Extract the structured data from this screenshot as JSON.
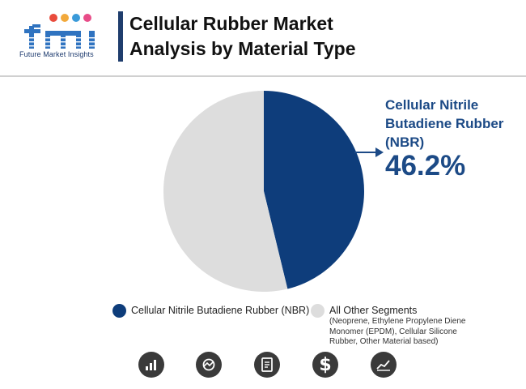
{
  "header": {
    "logo_text": "fmi",
    "logo_caption": "Future Market Insights",
    "title_line1": "Cellular Rubber Market",
    "title_line2": "Analysis by Material Type"
  },
  "colors": {
    "primary": "#0e3d7b",
    "secondary": "#dddddd",
    "accent_text": "#1c4a86"
  },
  "chart_data": {
    "type": "pie",
    "title": "Cellular Rubber Market Analysis by Material Type",
    "slices": [
      {
        "label": "Cellular Nitrile Butadiene Rubber (NBR)",
        "value": 46.2,
        "color": "#0e3d7b"
      },
      {
        "label": "All Other Segments",
        "value": 53.8,
        "color": "#dddddd"
      }
    ],
    "callout": {
      "label": "Cellular Nitrile Butadiene Rubber (NBR)",
      "value_text": "46.2%"
    }
  },
  "legend": {
    "item1": "Cellular Nitrile Butadiene Rubber (NBR)",
    "item2_title": "All Other Segments",
    "item2_sub": "(Neoprene, Ethylene Propylene Diene Monomer (EPDM), Cellular Silicone Rubber, Other Material based)"
  },
  "footer_icons": [
    "bar-chart-icon",
    "analytics-icon",
    "document-icon",
    "dollar-icon",
    "growth-chart-icon"
  ]
}
